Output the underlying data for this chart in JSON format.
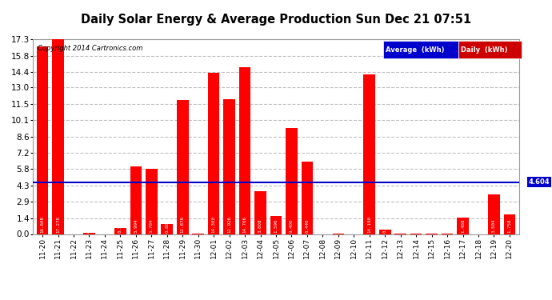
{
  "title": "Daily Solar Energy & Average Production Sun Dec 21 07:51",
  "copyright": "Copyright 2014 Cartronics.com",
  "categories": [
    "11-20",
    "11-21",
    "11-22",
    "11-23",
    "11-24",
    "11-25",
    "11-26",
    "11-27",
    "11-28",
    "11-29",
    "11-30",
    "12-01",
    "12-02",
    "12-03",
    "12-04",
    "12-05",
    "12-06",
    "12-07",
    "12-08",
    "12-09",
    "12-10",
    "12-11",
    "12-12",
    "12-13",
    "12-14",
    "12-15",
    "12-16",
    "12-17",
    "12-18",
    "12-19",
    "12-20"
  ],
  "values": [
    16.608,
    17.278,
    0.0,
    0.124,
    0.0,
    0.544,
    5.994,
    5.784,
    0.882,
    11.876,
    0.032,
    14.3,
    11.926,
    14.766,
    3.808,
    1.596,
    9.4,
    6.44,
    0.0,
    0.046,
    0.0,
    14.19,
    0.364,
    0.012,
    0.006,
    0.018,
    0.034,
    1.488,
    0.0,
    3.504,
    1.758
  ],
  "average": 4.604,
  "ylim": [
    0,
    17.3
  ],
  "yticks": [
    0.0,
    1.4,
    2.9,
    4.3,
    5.8,
    7.2,
    8.6,
    10.1,
    11.5,
    13.0,
    14.4,
    15.8,
    17.3
  ],
  "bar_color": "#ff0000",
  "avg_line_color": "#0000cc",
  "background_color": "#ffffff",
  "grid_color": "#bbbbbb",
  "title_color": "#000000",
  "legend_avg_bg": "#0000cc",
  "legend_daily_bg": "#cc0000",
  "avg_label_bg": "#0000cc"
}
